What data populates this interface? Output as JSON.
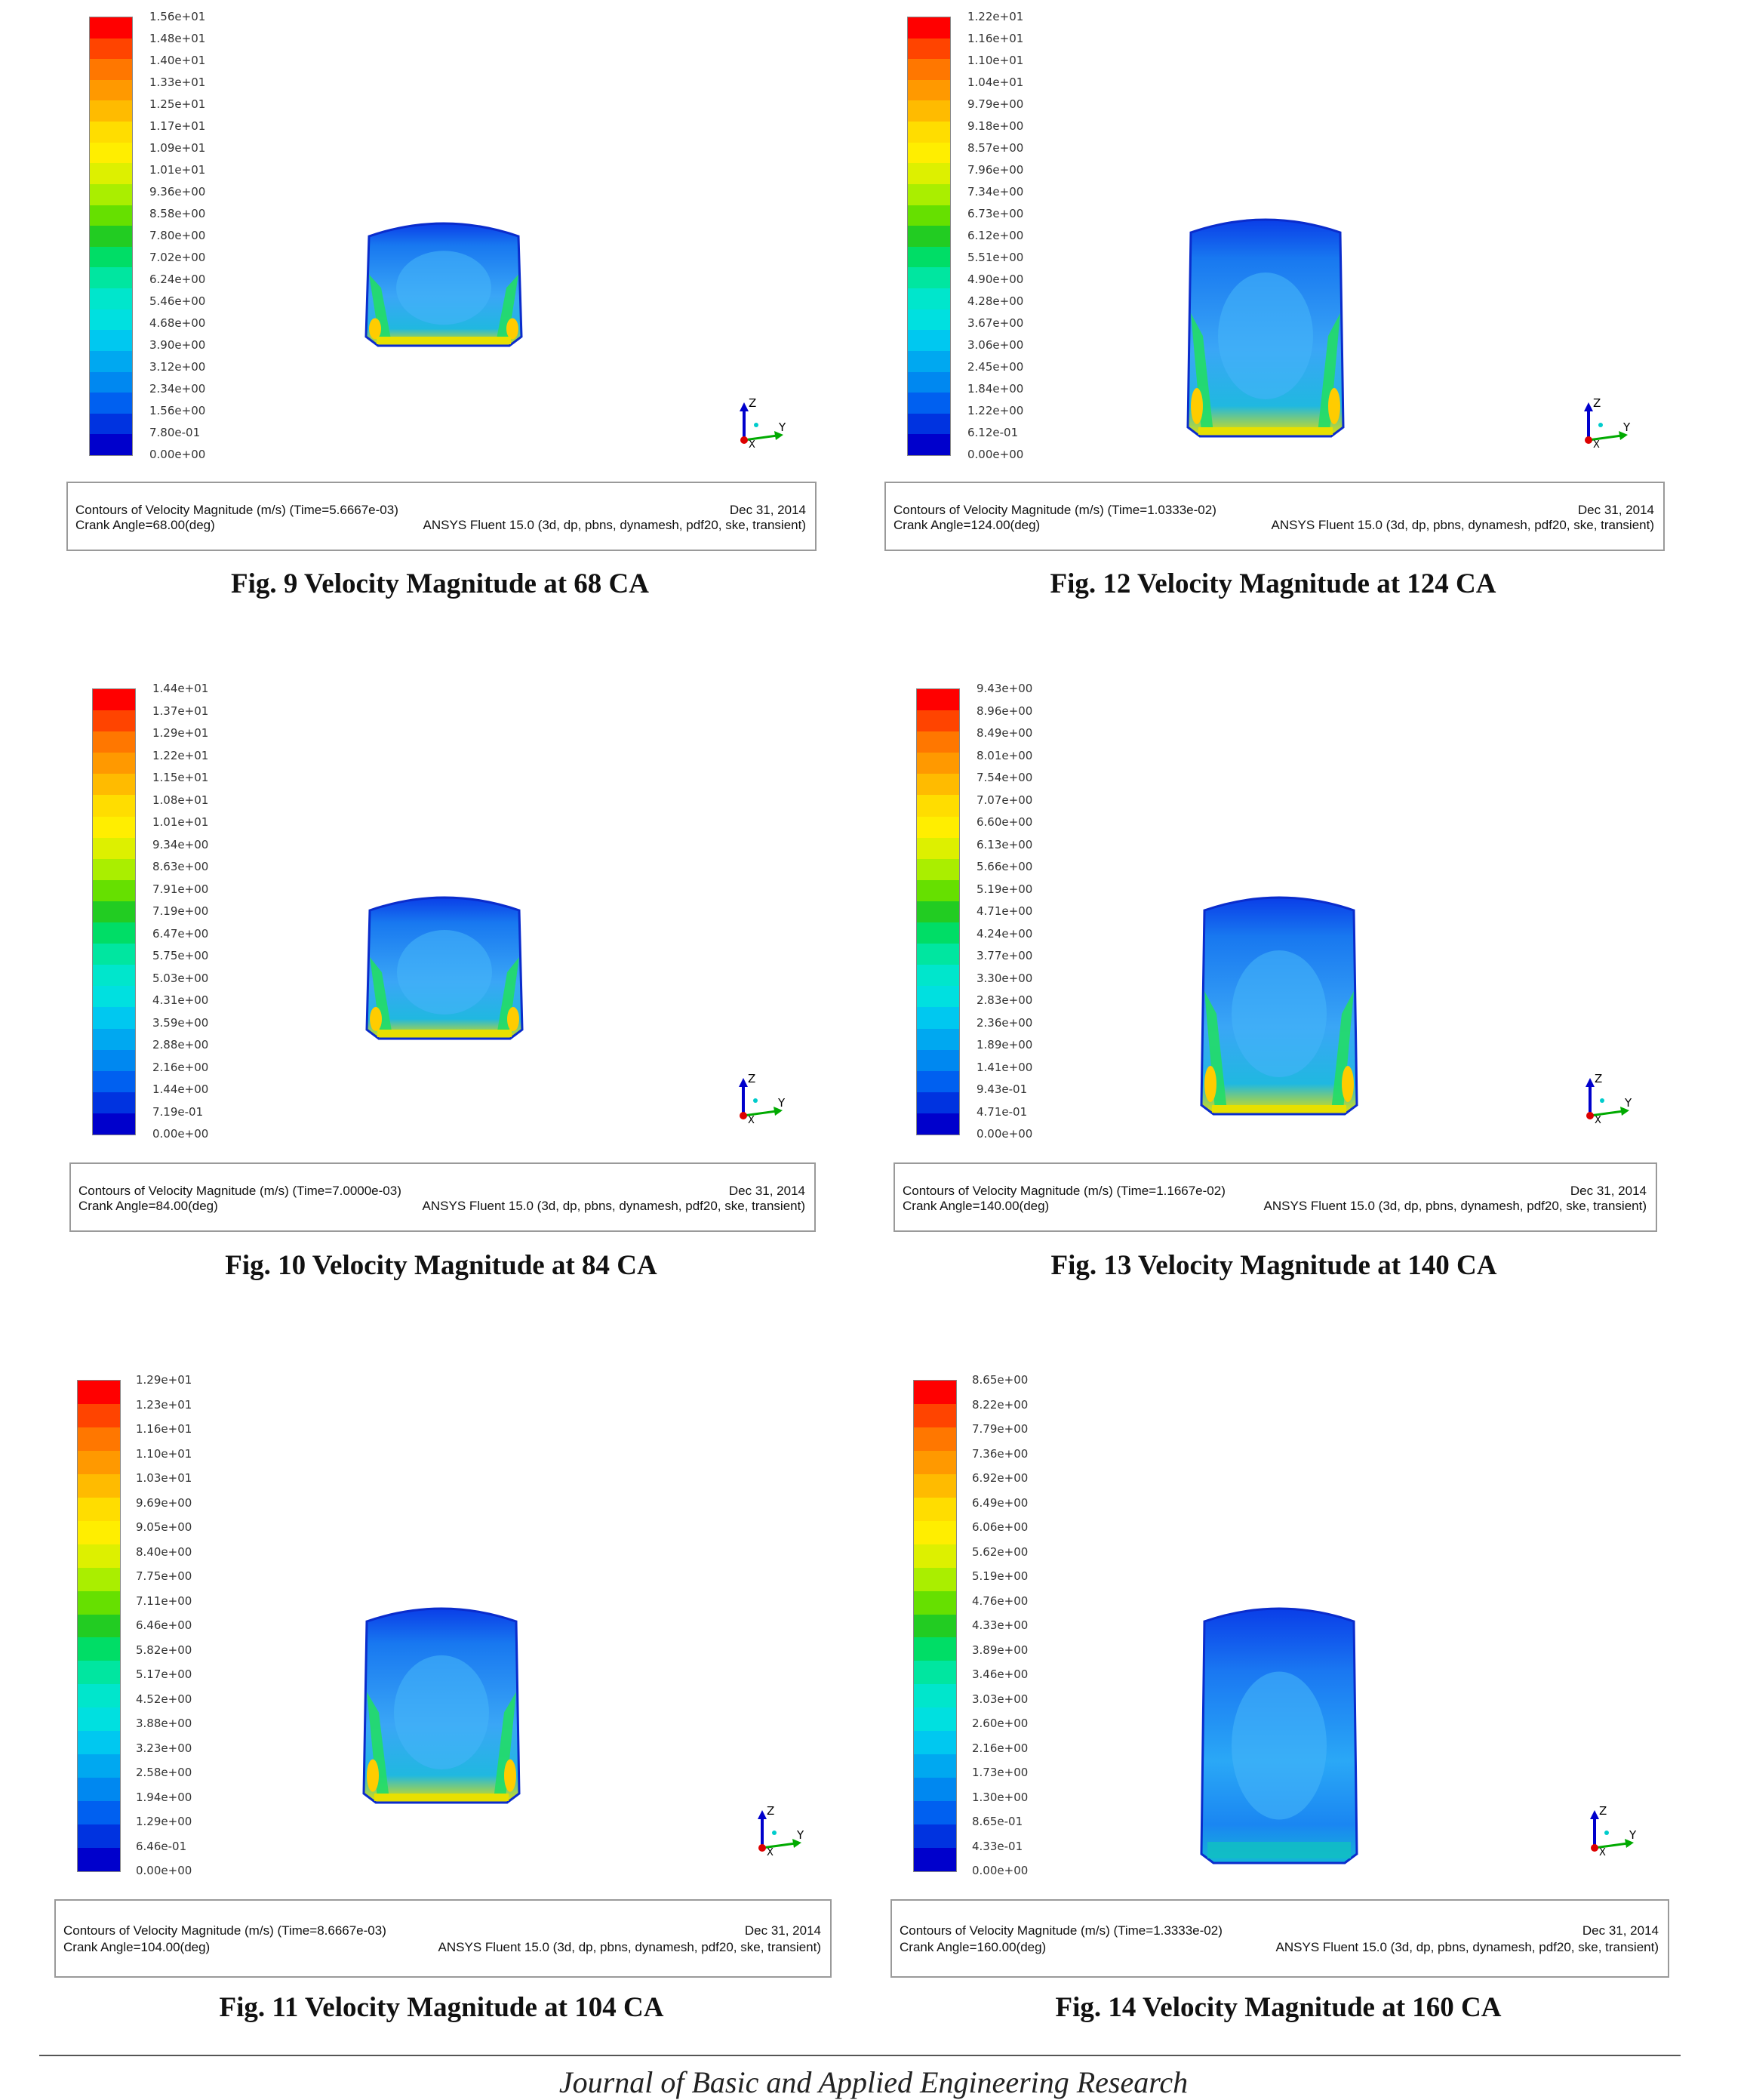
{
  "figures": [
    {
      "id": "fig9",
      "colorbar_ticks": [
        "1.56e+01",
        "1.48e+01",
        "1.40e+01",
        "1.33e+01",
        "1.25e+01",
        "1.17e+01",
        "1.09e+01",
        "1.01e+01",
        "9.36e+00",
        "8.58e+00",
        "7.80e+00",
        "7.02e+00",
        "6.24e+00",
        "5.46e+00",
        "4.68e+00",
        "3.90e+00",
        "3.12e+00",
        "2.34e+00",
        "1.56e+00",
        "7.80e-01",
        "0.00e+00"
      ],
      "info_title": "Contours of Velocity Magnitude (m/s)  (Time=5.6667e-03)",
      "info_date": "Dec 31, 2014",
      "info_angle": "Crank Angle=68.00(deg)",
      "info_solver": "ANSYS Fluent 15.0 (3d, dp, pbns, dynamesh, pdf20, ske, transient)",
      "caption": "Fig. 9 Velocity Magnitude at 68 CA"
    },
    {
      "id": "fig12",
      "colorbar_ticks": [
        "1.22e+01",
        "1.16e+01",
        "1.10e+01",
        "1.04e+01",
        "9.79e+00",
        "9.18e+00",
        "8.57e+00",
        "7.96e+00",
        "7.34e+00",
        "6.73e+00",
        "6.12e+00",
        "5.51e+00",
        "4.90e+00",
        "4.28e+00",
        "3.67e+00",
        "3.06e+00",
        "2.45e+00",
        "1.84e+00",
        "1.22e+00",
        "6.12e-01",
        "0.00e+00"
      ],
      "info_title": "Contours of Velocity Magnitude (m/s)  (Time=1.0333e-02)",
      "info_date": "Dec 31, 2014",
      "info_angle": "Crank Angle=124.00(deg)",
      "info_solver": "ANSYS Fluent 15.0 (3d, dp, pbns, dynamesh, pdf20, ske, transient)",
      "caption": "Fig. 12 Velocity Magnitude at 124 CA"
    },
    {
      "id": "fig10",
      "colorbar_ticks": [
        "1.44e+01",
        "1.37e+01",
        "1.29e+01",
        "1.22e+01",
        "1.15e+01",
        "1.08e+01",
        "1.01e+01",
        "9.34e+00",
        "8.63e+00",
        "7.91e+00",
        "7.19e+00",
        "6.47e+00",
        "5.75e+00",
        "5.03e+00",
        "4.31e+00",
        "3.59e+00",
        "2.88e+00",
        "2.16e+00",
        "1.44e+00",
        "7.19e-01",
        "0.00e+00"
      ],
      "info_title": "Contours of Velocity Magnitude (m/s)  (Time=7.0000e-03)",
      "info_date": "Dec 31, 2014",
      "info_angle": "Crank Angle=84.00(deg)",
      "info_solver": "ANSYS Fluent 15.0 (3d, dp, pbns, dynamesh, pdf20, ske, transient)",
      "caption": "Fig. 10 Velocity Magnitude at 84 CA"
    },
    {
      "id": "fig13",
      "colorbar_ticks": [
        "9.43e+00",
        "8.96e+00",
        "8.49e+00",
        "8.01e+00",
        "7.54e+00",
        "7.07e+00",
        "6.60e+00",
        "6.13e+00",
        "5.66e+00",
        "5.19e+00",
        "4.71e+00",
        "4.24e+00",
        "3.77e+00",
        "3.30e+00",
        "2.83e+00",
        "2.36e+00",
        "1.89e+00",
        "1.41e+00",
        "9.43e-01",
        "4.71e-01",
        "0.00e+00"
      ],
      "info_title": "Contours of Velocity Magnitude (m/s)  (Time=1.1667e-02)",
      "info_date": "Dec 31, 2014",
      "info_angle": "Crank Angle=140.00(deg)",
      "info_solver": "ANSYS Fluent 15.0 (3d, dp, pbns, dynamesh, pdf20, ske, transient)",
      "caption": "Fig. 13 Velocity Magnitude at 140 CA"
    },
    {
      "id": "fig11",
      "colorbar_ticks": [
        "1.29e+01",
        "1.23e+01",
        "1.16e+01",
        "1.10e+01",
        "1.03e+01",
        "9.69e+00",
        "9.05e+00",
        "8.40e+00",
        "7.75e+00",
        "7.11e+00",
        "6.46e+00",
        "5.82e+00",
        "5.17e+00",
        "4.52e+00",
        "3.88e+00",
        "3.23e+00",
        "2.58e+00",
        "1.94e+00",
        "1.29e+00",
        "6.46e-01",
        "0.00e+00"
      ],
      "info_title": "Contours of Velocity Magnitude (m/s)  (Time=8.6667e-03)",
      "info_date": "Dec 31, 2014",
      "info_angle": "Crank Angle=104.00(deg)",
      "info_solver": "ANSYS Fluent 15.0 (3d, dp, pbns, dynamesh, pdf20, ske, transient)",
      "caption": "Fig. 11 Velocity Magnitude at 104 CA"
    },
    {
      "id": "fig14",
      "colorbar_ticks": [
        "8.65e+00",
        "8.22e+00",
        "7.79e+00",
        "7.36e+00",
        "6.92e+00",
        "6.49e+00",
        "6.06e+00",
        "5.62e+00",
        "5.19e+00",
        "4.76e+00",
        "4.33e+00",
        "3.89e+00",
        "3.46e+00",
        "3.03e+00",
        "2.60e+00",
        "2.16e+00",
        "1.73e+00",
        "1.30e+00",
        "8.65e-01",
        "4.33e-01",
        "0.00e+00"
      ],
      "info_title": "Contours of Velocity Magnitude (m/s)  (Time=1.3333e-02)",
      "info_date": "Dec 31, 2014",
      "info_angle": "Crank Angle=160.00(deg)",
      "info_solver": "ANSYS Fluent 15.0 (3d, dp, pbns, dynamesh, pdf20, ske, transient)",
      "caption": "Fig. 14 Velocity Magnitude at 160 CA"
    }
  ],
  "axis_labels": {
    "z": "Z",
    "y": "Y",
    "x": "X"
  },
  "colormap": [
    "#ff0000",
    "#ff4400",
    "#ff7700",
    "#ff9900",
    "#ffbb00",
    "#ffdd00",
    "#ffee00",
    "#ddf000",
    "#aaee00",
    "#66e000",
    "#22cc22",
    "#00dd66",
    "#00e6a0",
    "#00e6cc",
    "#00e0e0",
    "#00c8f0",
    "#00a8f0",
    "#0088f0",
    "#0060f0",
    "#0033e0",
    "#0000cc"
  ],
  "footer": "Journal of Basic and Applied Engineering Research"
}
